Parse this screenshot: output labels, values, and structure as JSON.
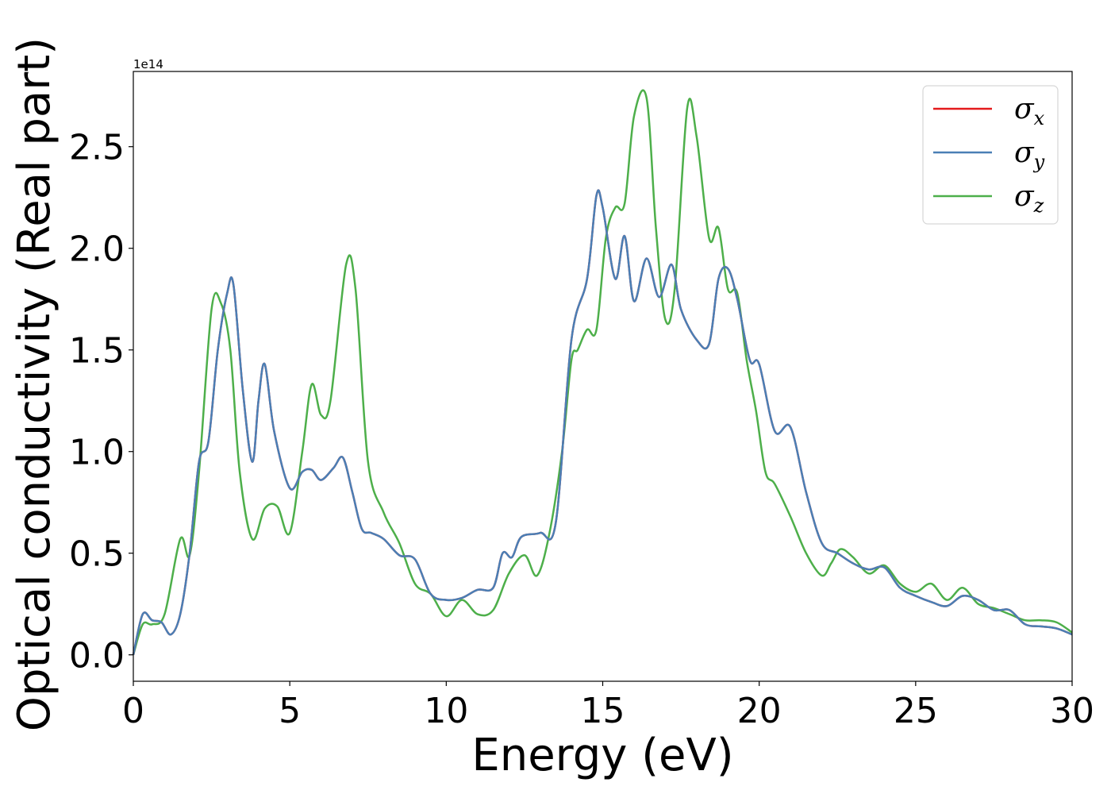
{
  "chart_data": {
    "type": "line",
    "title": "",
    "xlabel": "Energy (eV)",
    "ylabel": "Optical conductivity (Real part)",
    "y_offset_text": "1e14",
    "y_multiplier": 100000000000000.0,
    "xlim": [
      0,
      30
    ],
    "ylim": [
      -0.13,
      2.87
    ],
    "xticks": [
      0,
      5,
      10,
      15,
      20,
      25,
      30
    ],
    "xtick_labels": [
      "0",
      "5",
      "10",
      "15",
      "20",
      "25",
      "30"
    ],
    "yticks": [
      0.0,
      0.5,
      1.0,
      1.5,
      2.0,
      2.5
    ],
    "ytick_labels": [
      "0.0",
      "0.5",
      "1.0",
      "1.5",
      "2.0",
      "2.5"
    ],
    "grid": false,
    "legend_position": "top-right",
    "series": [
      {
        "name": "σx",
        "legend_symbol": "σ",
        "legend_sub": "x",
        "color": "#e41a1c",
        "x": [
          0,
          0.3,
          0.6,
          0.9,
          1.2,
          1.5,
          1.8,
          2.1,
          2.4,
          2.7,
          3.0,
          3.2,
          3.5,
          3.8,
          4.0,
          4.2,
          4.5,
          5.0,
          5.4,
          5.7,
          6.0,
          6.4,
          6.7,
          7.0,
          7.3,
          7.6,
          8.0,
          8.5,
          9.0,
          9.5,
          10.0,
          10.5,
          11.0,
          11.5,
          11.8,
          12.1,
          12.4,
          13.0,
          13.5,
          14.0,
          14.5,
          14.8,
          15.0,
          15.4,
          15.7,
          16.0,
          16.4,
          16.8,
          17.2,
          17.5,
          18.0,
          18.4,
          18.7,
          19.0,
          19.3,
          19.7,
          20.0,
          20.5,
          21.0,
          21.5,
          22.0,
          22.5,
          23.0,
          23.5,
          24.0,
          24.5,
          25.0,
          25.5,
          26.0,
          26.5,
          27.0,
          27.5,
          28.0,
          28.5,
          29.0,
          29.5,
          30.0
        ],
        "y": [
          0.0,
          0.2,
          0.17,
          0.16,
          0.1,
          0.2,
          0.5,
          0.95,
          1.05,
          1.5,
          1.78,
          1.82,
          1.3,
          0.95,
          1.25,
          1.43,
          1.1,
          0.82,
          0.9,
          0.91,
          0.86,
          0.92,
          0.97,
          0.8,
          0.62,
          0.6,
          0.57,
          0.49,
          0.47,
          0.3,
          0.27,
          0.28,
          0.32,
          0.33,
          0.5,
          0.48,
          0.58,
          0.6,
          0.65,
          1.55,
          1.85,
          2.26,
          2.2,
          1.85,
          2.06,
          1.74,
          1.95,
          1.76,
          1.92,
          1.7,
          1.55,
          1.53,
          1.85,
          1.9,
          1.75,
          1.45,
          1.43,
          1.1,
          1.12,
          0.8,
          0.55,
          0.5,
          0.45,
          0.42,
          0.43,
          0.33,
          0.29,
          0.26,
          0.24,
          0.29,
          0.27,
          0.22,
          0.22,
          0.15,
          0.14,
          0.13,
          0.1
        ]
      },
      {
        "name": "σy",
        "legend_symbol": "σ",
        "legend_sub": "y",
        "color": "#4a7fb5",
        "x": [
          0,
          0.3,
          0.6,
          0.9,
          1.2,
          1.5,
          1.8,
          2.1,
          2.4,
          2.7,
          3.0,
          3.2,
          3.5,
          3.8,
          4.0,
          4.2,
          4.5,
          5.0,
          5.4,
          5.7,
          6.0,
          6.4,
          6.7,
          7.0,
          7.3,
          7.6,
          8.0,
          8.5,
          9.0,
          9.5,
          10.0,
          10.5,
          11.0,
          11.5,
          11.8,
          12.1,
          12.4,
          13.0,
          13.5,
          14.0,
          14.5,
          14.8,
          15.0,
          15.4,
          15.7,
          16.0,
          16.4,
          16.8,
          17.2,
          17.5,
          18.0,
          18.4,
          18.7,
          19.0,
          19.3,
          19.7,
          20.0,
          20.5,
          21.0,
          21.5,
          22.0,
          22.5,
          23.0,
          23.5,
          24.0,
          24.5,
          25.0,
          25.5,
          26.0,
          26.5,
          27.0,
          27.5,
          28.0,
          28.5,
          29.0,
          29.5,
          30.0
        ],
        "y": [
          0.0,
          0.2,
          0.17,
          0.16,
          0.1,
          0.2,
          0.5,
          0.95,
          1.05,
          1.5,
          1.78,
          1.82,
          1.3,
          0.95,
          1.25,
          1.43,
          1.1,
          0.82,
          0.9,
          0.91,
          0.86,
          0.92,
          0.97,
          0.8,
          0.62,
          0.6,
          0.57,
          0.49,
          0.47,
          0.3,
          0.27,
          0.28,
          0.32,
          0.33,
          0.5,
          0.48,
          0.58,
          0.6,
          0.65,
          1.55,
          1.85,
          2.26,
          2.2,
          1.85,
          2.06,
          1.74,
          1.95,
          1.76,
          1.92,
          1.7,
          1.55,
          1.53,
          1.85,
          1.9,
          1.75,
          1.45,
          1.43,
          1.1,
          1.12,
          0.8,
          0.55,
          0.5,
          0.45,
          0.42,
          0.43,
          0.33,
          0.29,
          0.26,
          0.24,
          0.29,
          0.27,
          0.22,
          0.22,
          0.15,
          0.14,
          0.13,
          0.1
        ]
      },
      {
        "name": "σz",
        "legend_symbol": "σ",
        "legend_sub": "z",
        "color": "#4daf4a",
        "x": [
          0,
          0.3,
          0.6,
          1.0,
          1.5,
          1.8,
          2.1,
          2.5,
          2.8,
          3.1,
          3.4,
          3.8,
          4.2,
          4.6,
          5.0,
          5.4,
          5.7,
          6.0,
          6.3,
          6.8,
          7.1,
          7.5,
          8.0,
          8.5,
          9.0,
          9.5,
          10.0,
          10.5,
          11.0,
          11.5,
          12.0,
          12.5,
          12.9,
          13.3,
          13.7,
          14.0,
          14.2,
          14.5,
          14.8,
          15.1,
          15.4,
          15.7,
          16.0,
          16.4,
          16.7,
          17.0,
          17.3,
          17.7,
          18.0,
          18.4,
          18.7,
          19.0,
          19.3,
          19.6,
          19.9,
          20.2,
          20.5,
          21.0,
          21.5,
          22.0,
          22.3,
          22.6,
          23.0,
          23.5,
          24.0,
          24.5,
          25.0,
          25.5,
          26.0,
          26.5,
          27.0,
          27.5,
          28.0,
          28.5,
          29.0,
          29.5,
          30.0
        ],
        "y": [
          0.0,
          0.15,
          0.15,
          0.2,
          0.57,
          0.49,
          0.9,
          1.7,
          1.73,
          1.5,
          0.9,
          0.57,
          0.72,
          0.73,
          0.6,
          1.0,
          1.33,
          1.18,
          1.25,
          1.92,
          1.8,
          0.95,
          0.7,
          0.55,
          0.35,
          0.3,
          0.19,
          0.27,
          0.2,
          0.22,
          0.4,
          0.49,
          0.39,
          0.6,
          1.0,
          1.45,
          1.5,
          1.6,
          1.6,
          2.05,
          2.2,
          2.22,
          2.65,
          2.74,
          2.1,
          1.65,
          1.8,
          2.69,
          2.55,
          2.05,
          2.1,
          1.8,
          1.78,
          1.45,
          1.2,
          0.9,
          0.84,
          0.68,
          0.5,
          0.39,
          0.45,
          0.52,
          0.48,
          0.4,
          0.44,
          0.35,
          0.31,
          0.35,
          0.27,
          0.33,
          0.25,
          0.23,
          0.2,
          0.17,
          0.17,
          0.16,
          0.11
        ]
      }
    ]
  }
}
